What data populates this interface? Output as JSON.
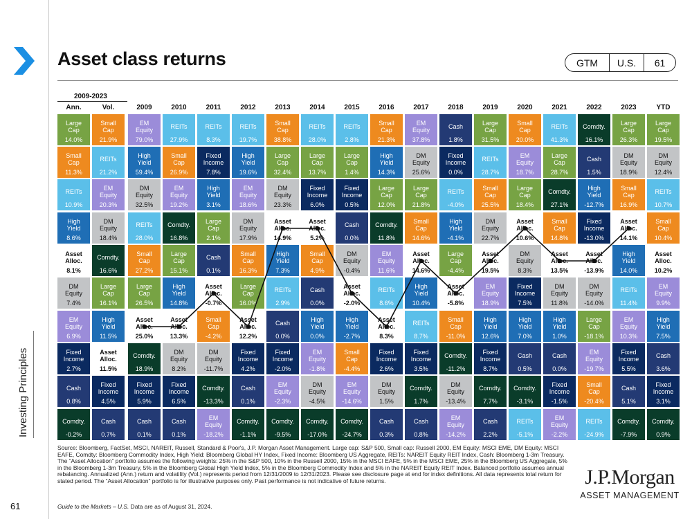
{
  "page": {
    "title": "Asset class returns",
    "page_number": "61"
  },
  "gtm": {
    "label": "GTM",
    "region": "U.S.",
    "page": "61"
  },
  "sidebar": {
    "label": "Investing Principles"
  },
  "header": {
    "range": "2009-2023",
    "ann": "Ann.",
    "vol": "Vol.",
    "ytd": "YTD",
    "years": [
      "2009",
      "2010",
      "2011",
      "2012",
      "2013",
      "2014",
      "2015",
      "2016",
      "2017",
      "2018",
      "2019",
      "2020",
      "2021",
      "2022",
      "2023"
    ]
  },
  "colors": {
    "Large Cap": "#77a344",
    "Small Cap": "#ee8a1f",
    "REITs": "#5bbfe9",
    "EM Equity": "#9b8cd9",
    "DM Equity": "#c2c4c6",
    "High Yield": "#1f6eb5",
    "Fixed Income": "#0b2a60",
    "Comdty.": "#0a3c2a",
    "Cash": "#233a74",
    "Asset Alloc.": "#ffffff"
  },
  "rows": [
    [
      [
        "Large Cap",
        "14.0%"
      ],
      [
        "Small Cap",
        "21.9%"
      ],
      [
        "EM Equity",
        "79.0%"
      ],
      [
        "REITs",
        "27.9%"
      ],
      [
        "REITs",
        "8.3%"
      ],
      [
        "REITs",
        "19.7%"
      ],
      [
        "Small Cap",
        "38.8%"
      ],
      [
        "REITs",
        "28.0%"
      ],
      [
        "REITs",
        "2.8%"
      ],
      [
        "Small Cap",
        "21.3%"
      ],
      [
        "EM Equity",
        "37.8%"
      ],
      [
        "Cash",
        "1.8%"
      ],
      [
        "Large Cap",
        "31.5%"
      ],
      [
        "Small Cap",
        "20.0%"
      ],
      [
        "REITs",
        "41.3%"
      ],
      [
        "Comdty.",
        "16.1%"
      ],
      [
        "Large Cap",
        "26.3%"
      ],
      [
        "Large Cap",
        "19.5%"
      ]
    ],
    [
      [
        "Small Cap",
        "11.3%"
      ],
      [
        "REITs",
        "21.2%"
      ],
      [
        "High Yield",
        "59.4%"
      ],
      [
        "Small Cap",
        "26.9%"
      ],
      [
        "Fixed Income",
        "7.8%"
      ],
      [
        "High Yield",
        "19.6%"
      ],
      [
        "Large Cap",
        "32.4%"
      ],
      [
        "Large Cap",
        "13.7%"
      ],
      [
        "Large Cap",
        "1.4%"
      ],
      [
        "High Yield",
        "14.3%"
      ],
      [
        "DM Equity",
        "25.6%"
      ],
      [
        "Fixed Income",
        "0.0%"
      ],
      [
        "REITs",
        "28.7%"
      ],
      [
        "EM Equity",
        "18.7%"
      ],
      [
        "Large Cap",
        "28.7%"
      ],
      [
        "Cash",
        "1.5%"
      ],
      [
        "DM Equity",
        "18.9%"
      ],
      [
        "DM Equity",
        "12.4%"
      ]
    ],
    [
      [
        "REITs",
        "10.9%"
      ],
      [
        "EM Equity",
        "20.3%"
      ],
      [
        "DM Equity",
        "32.5%"
      ],
      [
        "EM Equity",
        "19.2%"
      ],
      [
        "High Yield",
        "3.1%"
      ],
      [
        "EM Equity",
        "18.6%"
      ],
      [
        "DM Equity",
        "23.3%"
      ],
      [
        "Fixed Income",
        "6.0%"
      ],
      [
        "Fixed Income",
        "0.5%"
      ],
      [
        "Large Cap",
        "12.0%"
      ],
      [
        "Large Cap",
        "21.8%"
      ],
      [
        "REITs",
        "-4.0%"
      ],
      [
        "Small Cap",
        "25.5%"
      ],
      [
        "Large Cap",
        "18.4%"
      ],
      [
        "Comdty.",
        "27.1%"
      ],
      [
        "High Yield",
        "-12.7%"
      ],
      [
        "Small Cap",
        "16.9%"
      ],
      [
        "REITs",
        "10.7%"
      ]
    ],
    [
      [
        "High Yield",
        "8.6%"
      ],
      [
        "DM Equity",
        "18.4%"
      ],
      [
        "REITs",
        "28.0%"
      ],
      [
        "Comdty.",
        "16.8%"
      ],
      [
        "Large Cap",
        "2.1%"
      ],
      [
        "DM Equity",
        "17.9%"
      ],
      [
        "Asset Alloc.",
        "14.9%"
      ],
      [
        "Asset Alloc.",
        "5.2%"
      ],
      [
        "Cash",
        "0.0%"
      ],
      [
        "Comdty.",
        "11.8%"
      ],
      [
        "Small Cap",
        "14.6%"
      ],
      [
        "High Yield",
        "-4.1%"
      ],
      [
        "DM Equity",
        "22.7%"
      ],
      [
        "Asset Alloc.",
        "10.6%"
      ],
      [
        "Small Cap",
        "14.8%"
      ],
      [
        "Fixed Income",
        "-13.0%"
      ],
      [
        "Asset Alloc.",
        "14.1%"
      ],
      [
        "Small Cap",
        "10.4%"
      ]
    ],
    [
      [
        "Asset Alloc.",
        "8.1%"
      ],
      [
        "Comdty.",
        "16.6%"
      ],
      [
        "Small Cap",
        "27.2%"
      ],
      [
        "Large Cap",
        "15.1%"
      ],
      [
        "Cash",
        "0.1%"
      ],
      [
        "Small Cap",
        "16.3%"
      ],
      [
        "High Yield",
        "7.3%"
      ],
      [
        "Small Cap",
        "4.9%"
      ],
      [
        "DM Equity",
        "-0.4%"
      ],
      [
        "EM Equity",
        "11.6%"
      ],
      [
        "Asset Alloc.",
        "14.6%"
      ],
      [
        "Large Cap",
        "-4.4%"
      ],
      [
        "Asset Alloc.",
        "19.5%"
      ],
      [
        "DM Equity",
        "8.3%"
      ],
      [
        "Asset Alloc.",
        "13.5%"
      ],
      [
        "Asset Alloc.",
        "-13.9%"
      ],
      [
        "High Yield",
        "14.0%"
      ],
      [
        "Asset Alloc.",
        "10.2%"
      ]
    ],
    [
      [
        "DM Equity",
        "7.4%"
      ],
      [
        "Large Cap",
        "16.1%"
      ],
      [
        "Large Cap",
        "26.5%"
      ],
      [
        "High Yield",
        "14.8%"
      ],
      [
        "Asset Alloc.",
        "-0.7%"
      ],
      [
        "Large Cap",
        "16.0%"
      ],
      [
        "REITs",
        "2.9%"
      ],
      [
        "Cash",
        "0.0%"
      ],
      [
        "Asset Alloc.",
        "-2.0%"
      ],
      [
        "REITs",
        "8.6%"
      ],
      [
        "High Yield",
        "10.4%"
      ],
      [
        "Asset Alloc.",
        "-5.8%"
      ],
      [
        "EM Equity",
        "18.9%"
      ],
      [
        "Fixed Income",
        "7.5%"
      ],
      [
        "DM Equity",
        "11.8%"
      ],
      [
        "DM Equity",
        "-14.0%"
      ],
      [
        "REITs",
        "11.4%"
      ],
      [
        "EM Equity",
        "9.9%"
      ]
    ],
    [
      [
        "EM Equity",
        "6.9%"
      ],
      [
        "High Yield",
        "11.5%"
      ],
      [
        "Asset Alloc.",
        "25.0%"
      ],
      [
        "Asset Alloc.",
        "13.3%"
      ],
      [
        "Small Cap",
        "-4.2%"
      ],
      [
        "Asset Alloc.",
        "12.2%"
      ],
      [
        "Cash",
        "0.0%"
      ],
      [
        "High Yield",
        "0.0%"
      ],
      [
        "High Yield",
        "-2.7%"
      ],
      [
        "Asset Alloc.",
        "8.3%"
      ],
      [
        "REITs",
        "8.7%"
      ],
      [
        "Small Cap",
        "-11.0%"
      ],
      [
        "High Yield",
        "12.6%"
      ],
      [
        "High Yield",
        "7.0%"
      ],
      [
        "High Yield",
        "1.0%"
      ],
      [
        "Large Cap",
        "-18.1%"
      ],
      [
        "EM Equity",
        "10.3%"
      ],
      [
        "High Yield",
        "7.5%"
      ]
    ],
    [
      [
        "Fixed Income",
        "2.7%"
      ],
      [
        "Asset Alloc.",
        "11.5%"
      ],
      [
        "Comdty.",
        "18.9%"
      ],
      [
        "DM Equity",
        "8.2%"
      ],
      [
        "DM Equity",
        "-11.7%"
      ],
      [
        "Fixed Income",
        "4.2%"
      ],
      [
        "Fixed Income",
        "-2.0%"
      ],
      [
        "EM Equity",
        "-1.8%"
      ],
      [
        "Small Cap",
        "-4.4%"
      ],
      [
        "Fixed Income",
        "2.6%"
      ],
      [
        "Fixed Income",
        "3.5%"
      ],
      [
        "Comdty.",
        "-11.2%"
      ],
      [
        "Fixed Income",
        "8.7%"
      ],
      [
        "Cash",
        "0.5%"
      ],
      [
        "Cash",
        "0.0%"
      ],
      [
        "EM Equity",
        "-19.7%"
      ],
      [
        "Fixed Income",
        "5.5%"
      ],
      [
        "Cash",
        "3.6%"
      ]
    ],
    [
      [
        "Cash",
        "0.8%"
      ],
      [
        "Fixed Income",
        "4.5%"
      ],
      [
        "Fixed Income",
        "5.9%"
      ],
      [
        "Fixed Income",
        "6.5%"
      ],
      [
        "Comdty.",
        "-13.3%"
      ],
      [
        "Cash",
        "0.1%"
      ],
      [
        "EM Equity",
        "-2.3%"
      ],
      [
        "DM Equity",
        "-4.5%"
      ],
      [
        "EM Equity",
        "-14.6%"
      ],
      [
        "DM Equity",
        "1.5%"
      ],
      [
        "Comdty.",
        "1.7%"
      ],
      [
        "DM Equity",
        "-13.4%"
      ],
      [
        "Comdty.",
        "7.7%"
      ],
      [
        "Comdty.",
        "-3.1%"
      ],
      [
        "Fixed Income",
        "-1.5%"
      ],
      [
        "Small Cap",
        "-20.4%"
      ],
      [
        "Cash",
        "5.1%"
      ],
      [
        "Fixed Income",
        "3.1%"
      ]
    ],
    [
      [
        "Comdty.",
        "-0.2%"
      ],
      [
        "Cash",
        "0.7%"
      ],
      [
        "Cash",
        "0.1%"
      ],
      [
        "Cash",
        "0.1%"
      ],
      [
        "EM Equity",
        "-18.2%"
      ],
      [
        "Comdty.",
        "-1.1%"
      ],
      [
        "Comdty.",
        "-9.5%"
      ],
      [
        "Comdty.",
        "-17.0%"
      ],
      [
        "Comdty.",
        "-24.7%"
      ],
      [
        "Cash",
        "0.3%"
      ],
      [
        "Cash",
        "0.8%"
      ],
      [
        "EM Equity",
        "-14.2%"
      ],
      [
        "Cash",
        "2.2%"
      ],
      [
        "REITs",
        "-5.1%"
      ],
      [
        "EM Equity",
        "-2.2%"
      ],
      [
        "REITs",
        "-24.9%"
      ],
      [
        "Comdty.",
        "-7.9%"
      ],
      [
        "Comdty.",
        "0.9%"
      ]
    ]
  ],
  "footer": {
    "source": "Source: Bloomberg, FactSet, MSCI, NAREIT, Russell, Standard & Poor's, J.P. Morgan Asset Management.\nLarge cap: S&P 500, Small cap: Russell 2000, EM Equity: MSCI EME, DM Equity: MSCI EAFE, Comdty: Bloomberg Commodity Index, High Yield: Bloomberg Global HY Index, Fixed Income: Bloomberg US Aggregate, REITs: NAREIT Equity REIT Index, Cash: Bloomberg 1-3m Treasury. The “Asset Allocation” portfolio assumes the following weights: 25% in the S&P 500, 10% in the Russell 2000, 15% in the MSCI EAFE, 5% in the MSCI EME, 25% in the Bloomberg US Aggregate, 5% in the Bloomberg 1-3m Treasury, 5% in the Bloomberg Global High Yield Index, 5% in the Bloomberg Commodity Index and 5% in the NAREIT Equity REIT Index. Balanced portfolio assumes annual rebalancing. Annualized (Ann.) return and volatility (Vol.) represents period from 12/31/2009 to 12/31/2023. Please see disclosure page at end for index definitions. All data represents total return for stated period. The “Asset Allocation” portfolio is for illustrative purposes only. Past performance is not indicative of future returns.",
    "guide_italic": "Guide to the Markets – U.S.",
    "guide_rest": " Data are as of August 31, 2024."
  },
  "logo": {
    "main": "J.P.Morgan",
    "sub": "ASSET MANAGEMENT"
  }
}
